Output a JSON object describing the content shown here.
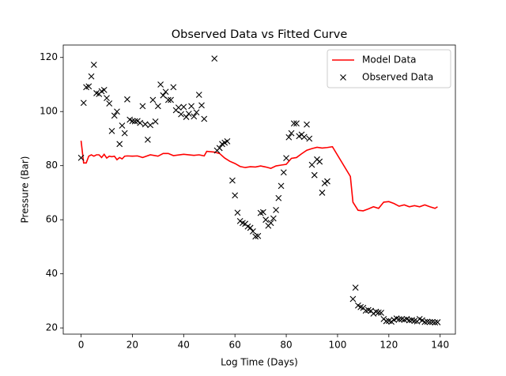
{
  "chart_data": {
    "type": "line_scatter",
    "title": "Observed Data vs Fitted Curve",
    "x_label": "Log Time (Days)",
    "y_label": "Pressure (Bar)",
    "xlim": [
      -6.95,
      145.95
    ],
    "ylim": [
      17.7,
      124.6
    ],
    "xticks": [
      0,
      20,
      40,
      60,
      80,
      100,
      120,
      140
    ],
    "yticks": [
      20,
      40,
      60,
      80,
      100,
      120
    ],
    "legend": "upper right",
    "series": [
      {
        "name": "Model Data",
        "color": "#ff0000",
        "style": "line",
        "x": [
          0,
          1,
          2,
          3,
          4,
          5,
          6,
          7,
          8,
          9,
          10,
          11,
          12,
          13,
          14,
          15,
          16,
          17,
          18,
          20,
          22,
          24,
          27,
          30,
          32,
          34,
          36,
          40,
          44,
          46,
          48,
          49,
          52,
          54,
          56,
          58,
          60,
          62,
          64,
          66,
          68,
          70,
          72,
          74,
          76,
          78,
          80,
          82,
          84,
          86,
          88,
          90,
          92,
          94,
          96,
          98,
          105,
          106,
          108,
          110,
          112,
          114,
          116,
          118,
          120,
          122,
          124,
          126,
          128,
          130,
          132,
          134,
          136,
          138,
          139
        ],
        "values": [
          89.2,
          81,
          81,
          83.5,
          84,
          83.5,
          84,
          84,
          83,
          84.2,
          82.8,
          83.5,
          83.3,
          83.5,
          82.2,
          83,
          82.5,
          83.5,
          83.6,
          83.5,
          83.6,
          83,
          84,
          83.5,
          84.5,
          84.5,
          83.7,
          84.2,
          83.8,
          84,
          83.6,
          85.3,
          85,
          84.5,
          82.8,
          81.6,
          80.8,
          79.7,
          79.3,
          79.6,
          79.5,
          79.9,
          79.5,
          79,
          79.9,
          80.2,
          80.5,
          82.7,
          83,
          84.4,
          85.7,
          86.3,
          86.8,
          86.5,
          86.7,
          87,
          76,
          66.5,
          63.5,
          63.3,
          64,
          64.8,
          64.2,
          66.5,
          66.7,
          66,
          65,
          65.5,
          64.8,
          65.2,
          64.8,
          65.5,
          64.8,
          64.2,
          64.8
        ]
      },
      {
        "name": "Observed Data",
        "color": "#000000",
        "style": "x",
        "x": [
          0,
          1,
          2,
          3,
          4,
          5,
          6,
          7,
          8,
          9,
          10,
          11,
          12,
          13,
          14,
          15,
          16,
          17,
          18,
          19,
          20,
          21,
          22,
          23,
          24,
          25,
          26,
          27,
          28,
          29,
          30,
          31,
          32,
          33,
          34,
          35,
          36,
          37,
          38,
          39,
          40,
          41,
          42,
          43,
          44,
          45,
          46,
          47,
          48,
          52,
          53,
          54,
          55,
          56,
          57,
          59,
          60,
          61,
          62,
          63,
          64,
          65,
          66,
          67,
          68,
          69,
          70,
          71,
          72,
          73,
          74,
          75,
          76,
          77,
          78,
          79,
          80,
          81,
          82,
          83,
          84,
          85,
          86,
          87,
          88,
          89,
          90,
          91,
          92,
          93,
          94,
          95,
          96,
          106,
          107,
          108,
          109,
          110,
          111,
          112,
          113,
          114,
          115,
          116,
          117,
          118,
          119,
          120,
          121,
          122,
          123,
          124,
          125,
          126,
          127,
          128,
          129,
          130,
          131,
          132,
          133,
          134,
          135,
          136,
          137,
          138,
          139
        ],
        "values": [
          82.9,
          103.2,
          109,
          109.3,
          113,
          117.3,
          106.8,
          106.5,
          107.5,
          108,
          105,
          103,
          92.8,
          98.5,
          100,
          88,
          94.8,
          92,
          104.5,
          97,
          96.5,
          96.4,
          96.5,
          95.8,
          102,
          95.3,
          89.6,
          95,
          104.3,
          96.3,
          102,
          110,
          106,
          107.3,
          104.3,
          104.3,
          109,
          100.5,
          101.5,
          99,
          101.7,
          98,
          99.2,
          102,
          98.2,
          99.7,
          106.2,
          102.3,
          97.3,
          119.6,
          85.6,
          86.5,
          88,
          88.5,
          89,
          74.5,
          69,
          62.6,
          59.5,
          58.8,
          58.5,
          57.5,
          57,
          55.7,
          53.8,
          54,
          62.5,
          62.8,
          60,
          57.8,
          58.8,
          60.5,
          63.6,
          68,
          72.5,
          77.5,
          82.8,
          90.5,
          92,
          95.6,
          95.6,
          90.9,
          91.5,
          90.6,
          95.2,
          90,
          80.3,
          76.5,
          82.3,
          81.5,
          70,
          73.5,
          74.2,
          30.7,
          34.9,
          28.3,
          27.7,
          27.4,
          26.4,
          26.6,
          26.3,
          25.3,
          26,
          25.7,
          25.6,
          23.3,
          22.5,
          22.6,
          22.3,
          23,
          23.5,
          23.2,
          23.2,
          23,
          23.3,
          22.8,
          22.9,
          22.6,
          22.4,
          23.3,
          22.8,
          22.2,
          22.3,
          22.2,
          22.2,
          22,
          22.1
        ]
      }
    ]
  }
}
